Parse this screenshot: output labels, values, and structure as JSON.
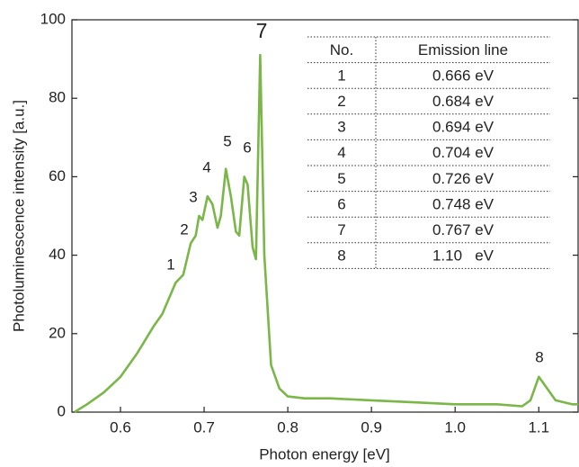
{
  "chart_data": {
    "type": "line",
    "x_label": "Photon energy [eV]",
    "y_label": "Photoluminescence intensity [a.u.]",
    "xlim": [
      0.542,
      1.147
    ],
    "ylim": [
      0,
      100
    ],
    "xticks": [
      0.6,
      0.7,
      0.8,
      0.9,
      {
        "value": 1.0,
        "label": "1.0"
      },
      1.1
    ],
    "yticks": [
      0,
      20,
      40,
      60,
      80,
      100
    ],
    "series": [
      {
        "color": "#7ab648",
        "x": [
          0.545,
          0.56,
          0.58,
          0.6,
          0.62,
          0.64,
          0.65,
          0.66,
          0.666,
          0.675,
          0.684,
          0.69,
          0.694,
          0.698,
          0.704,
          0.71,
          0.716,
          0.72,
          0.726,
          0.732,
          0.738,
          0.742,
          0.748,
          0.752,
          0.758,
          0.762,
          0.767,
          0.772,
          0.78,
          0.79,
          0.8,
          0.82,
          0.85,
          0.9,
          0.95,
          1.0,
          1.05,
          1.08,
          1.09,
          1.1,
          1.11,
          1.12,
          1.14,
          1.147
        ],
        "values": [
          0,
          2,
          5,
          9,
          15,
          22,
          25,
          30,
          33,
          35,
          43,
          45,
          50,
          49,
          55,
          53,
          47,
          50,
          62,
          55,
          46,
          45,
          60,
          58,
          42,
          39,
          91,
          40,
          12,
          6,
          4,
          3.5,
          3.5,
          3,
          2.5,
          2,
          2,
          1.5,
          3,
          9,
          6,
          3,
          2,
          2
        ]
      }
    ],
    "annotations": [
      "1",
      "2",
      "3",
      "4",
      "5",
      "6",
      "7",
      "8"
    ],
    "table": {
      "header": [
        "No.",
        "Emission line"
      ],
      "rows": [
        [
          "1",
          "0.666 eV"
        ],
        [
          "2",
          "0.684 eV"
        ],
        [
          "3",
          "0.694 eV"
        ],
        [
          "4",
          "0.704 eV"
        ],
        [
          "5",
          "0.726 eV"
        ],
        [
          "6",
          "0.748 eV"
        ],
        [
          "7",
          "0.767 eV"
        ],
        [
          "8",
          "1.10   eV"
        ]
      ]
    }
  }
}
